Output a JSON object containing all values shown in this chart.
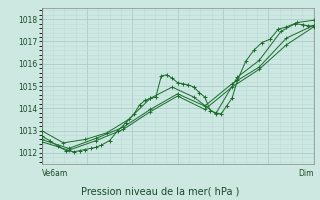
{
  "title": "Pression niveau de la mer( hPa )",
  "xlabel_left": "Ve6am",
  "xlabel_right": "Dim",
  "ylim": [
    1011.5,
    1018.5
  ],
  "yticks": [
    1012,
    1013,
    1014,
    1015,
    1016,
    1017,
    1018
  ],
  "bg_color": "#cce8e0",
  "grid_major_color": "#aacccc",
  "grid_minor_color": "#bbdddd",
  "line_color": "#1a6b2a",
  "series": [
    [
      0.0,
      1012.75,
      0.03,
      1012.55,
      0.06,
      1012.3,
      0.09,
      1012.1,
      0.12,
      1012.05,
      0.14,
      1012.1,
      0.16,
      1012.15,
      0.18,
      1012.2,
      0.2,
      1012.25,
      0.22,
      1012.35,
      0.25,
      1012.55,
      0.28,
      1013.0,
      0.31,
      1013.35,
      0.34,
      1013.75,
      0.36,
      1014.15,
      0.38,
      1014.35,
      0.4,
      1014.45,
      0.42,
      1014.5,
      0.44,
      1015.45,
      0.46,
      1015.5,
      0.48,
      1015.35,
      0.5,
      1015.15,
      0.52,
      1015.1,
      0.54,
      1015.05,
      0.56,
      1014.95,
      0.58,
      1014.7,
      0.6,
      1014.5,
      0.62,
      1013.9,
      0.64,
      1013.8,
      0.66,
      1013.75,
      0.68,
      1014.1,
      0.7,
      1014.45,
      0.72,
      1015.25,
      0.75,
      1016.1,
      0.78,
      1016.6,
      0.81,
      1016.95,
      0.84,
      1017.1,
      0.87,
      1017.55,
      0.9,
      1017.65,
      0.93,
      1017.8,
      0.96,
      1017.75,
      0.98,
      1017.7,
      1.0,
      1017.7
    ],
    [
      0.0,
      1013.0,
      0.08,
      1012.45,
      0.16,
      1012.6,
      0.24,
      1012.9,
      0.32,
      1013.5,
      0.4,
      1014.45,
      0.48,
      1014.95,
      0.56,
      1014.5,
      0.64,
      1013.75,
      0.72,
      1015.4,
      0.8,
      1016.15,
      0.88,
      1017.45,
      0.94,
      1017.85,
      1.0,
      1017.95
    ],
    [
      0.0,
      1012.6,
      0.1,
      1012.2,
      0.2,
      1012.65,
      0.3,
      1013.15,
      0.4,
      1013.95,
      0.5,
      1014.65,
      0.6,
      1014.1,
      0.7,
      1015.1,
      0.8,
      1015.85,
      0.9,
      1017.15,
      1.0,
      1017.72
    ],
    [
      0.0,
      1012.5,
      0.1,
      1012.12,
      0.2,
      1012.55,
      0.3,
      1013.05,
      0.4,
      1013.85,
      0.5,
      1014.55,
      0.6,
      1013.95,
      0.7,
      1014.95,
      0.8,
      1015.75,
      0.9,
      1016.85,
      1.0,
      1017.65
    ]
  ]
}
